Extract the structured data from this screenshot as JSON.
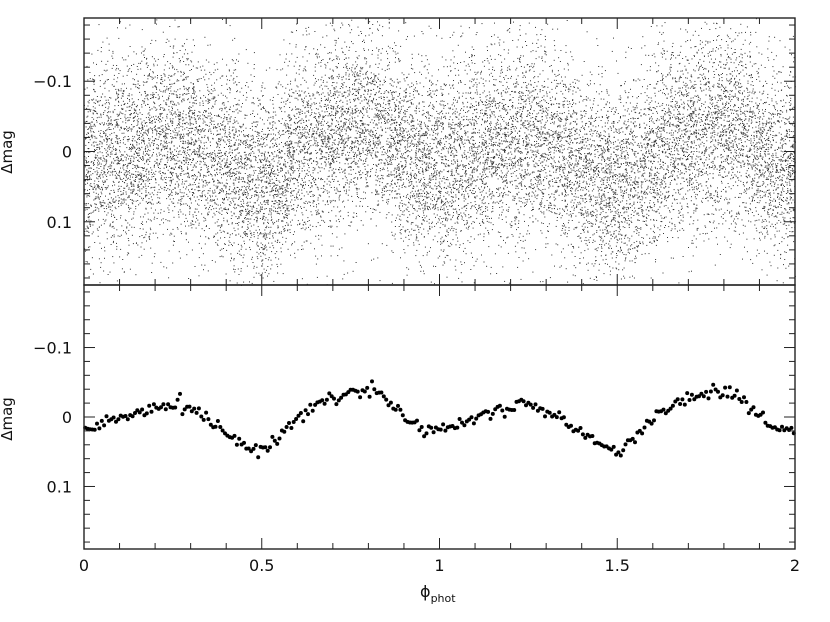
{
  "chart_data": [
    {
      "type": "scatter",
      "panel": "top",
      "xlabel": "ϕ",
      "xlabel_sub": "phot",
      "ylabel": "Δmag",
      "xlim": [
        0,
        2
      ],
      "ylim": [
        0.19,
        -0.19
      ],
      "y_inverted": true,
      "xticks": [
        "0",
        "0.5",
        "1",
        "1.5",
        "2"
      ],
      "xtick_values": [
        0,
        0.5,
        1,
        1.5,
        2
      ],
      "show_xticklabels": false,
      "yticks": [
        "−0.1",
        "0",
        "0.1"
      ],
      "ytick_values": [
        -0.1,
        0,
        0.1
      ],
      "grid": false,
      "marker": "tiny dots",
      "series": [
        {
          "phase": [
            0.0,
            0.05,
            0.1,
            0.15,
            0.2,
            0.25,
            0.3,
            0.35,
            0.4,
            0.45,
            0.5,
            0.55,
            0.6,
            0.65,
            0.7,
            0.75,
            0.8,
            0.85,
            0.9,
            0.95,
            1.0
          ],
          "mean_dmag": [
            0.02,
            0.01,
            0.0,
            -0.005,
            -0.015,
            -0.02,
            -0.01,
            0.005,
            0.02,
            0.04,
            0.05,
            0.03,
            0.0,
            -0.015,
            -0.025,
            -0.035,
            -0.04,
            -0.03,
            0.0,
            0.02,
            0.02
          ],
          "scatter_sigma": 0.07,
          "points_per_unit_phase": 8000
        }
      ]
    },
    {
      "type": "scatter",
      "panel": "bottom",
      "xlabel": "ϕ",
      "xlabel_sub": "phot",
      "ylabel": "Δmag",
      "xlim": [
        0,
        2
      ],
      "ylim": [
        0.19,
        -0.19
      ],
      "y_inverted": true,
      "xticks": [
        "0",
        "0.5",
        "1",
        "1.5",
        "2"
      ],
      "xtick_values": [
        0,
        0.5,
        1,
        1.5,
        2
      ],
      "show_xticklabels": true,
      "yticks": [
        "−0.1",
        "0",
        "0.1"
      ],
      "ytick_values": [
        -0.1,
        0,
        0.1
      ],
      "grid": false,
      "marker": "filled dots",
      "series": [
        {
          "phase": [
            0.0,
            0.05,
            0.1,
            0.15,
            0.2,
            0.25,
            0.3,
            0.35,
            0.4,
            0.45,
            0.5,
            0.55,
            0.6,
            0.65,
            0.7,
            0.75,
            0.8,
            0.85,
            0.9,
            0.95,
            1.0,
            1.05,
            1.1,
            1.15,
            1.2,
            1.25,
            1.3,
            1.35,
            1.4,
            1.45,
            1.5,
            1.55,
            1.6,
            1.65,
            1.7,
            1.75,
            1.8,
            1.85,
            1.9,
            1.95,
            2.0
          ],
          "dmag": [
            0.02,
            0.01,
            0.0,
            -0.005,
            -0.015,
            -0.02,
            -0.01,
            0.005,
            0.02,
            0.04,
            0.05,
            0.03,
            0.0,
            -0.015,
            -0.025,
            -0.035,
            -0.04,
            -0.03,
            0.0,
            0.02,
            0.02,
            0.01,
            0.0,
            -0.005,
            -0.015,
            -0.02,
            -0.01,
            0.005,
            0.02,
            0.04,
            0.05,
            0.03,
            0.0,
            -0.015,
            -0.025,
            -0.035,
            -0.04,
            -0.03,
            0.0,
            0.02,
            0.02
          ],
          "scatter_sigma": 0.005,
          "points_per_unit_phase": 150
        }
      ]
    }
  ]
}
